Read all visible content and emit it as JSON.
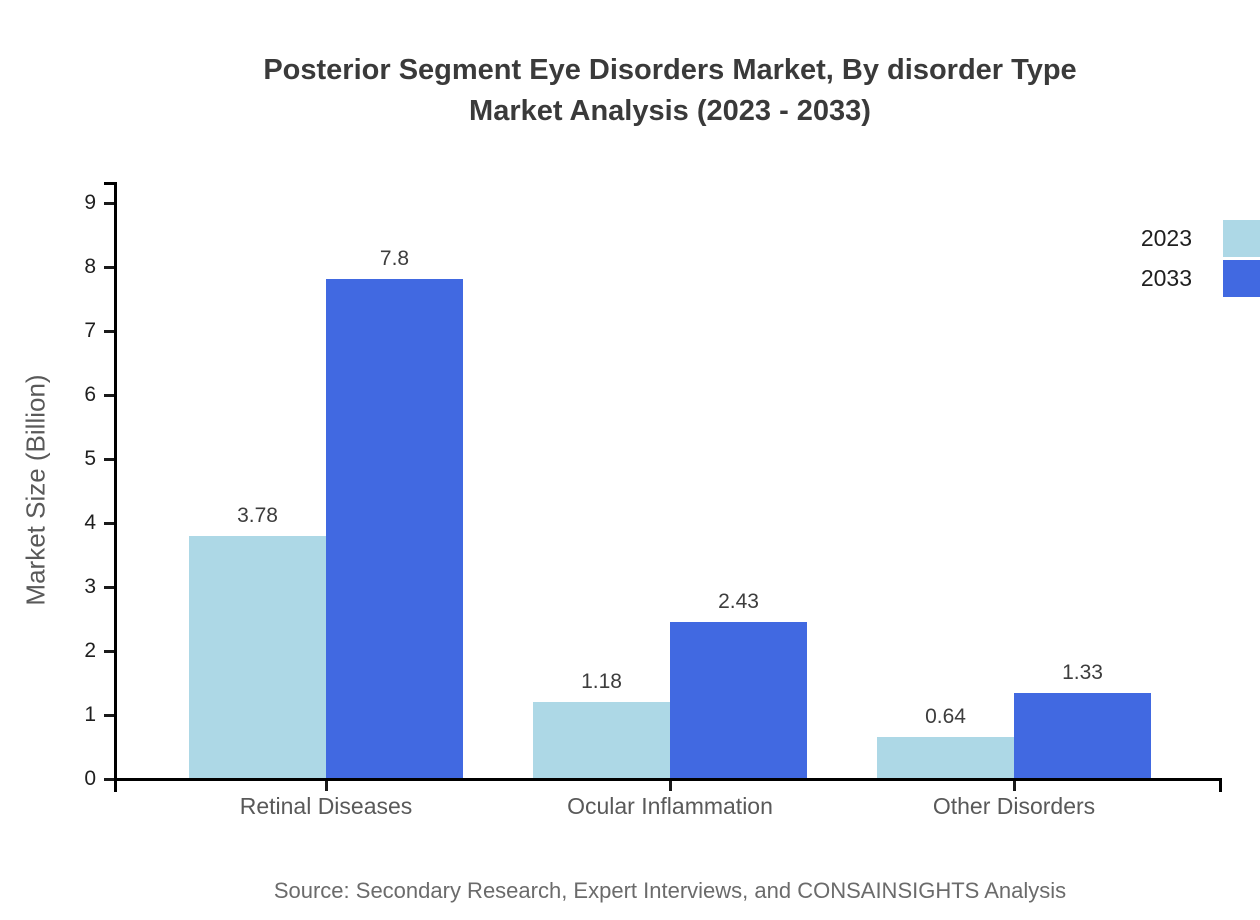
{
  "title": {
    "line1": "Posterior Segment Eye Disorders Market, By disorder Type",
    "line2": "Market Analysis (2023 - 2033)"
  },
  "chart_data": {
    "type": "bar",
    "title": "Posterior Segment Eye Disorders Market, By disorder Type Market Analysis (2023 - 2033)",
    "categories": [
      "Retinal Diseases",
      "Ocular Inflammation",
      "Other Disorders"
    ],
    "series": [
      {
        "name": "2023",
        "color": "#ADD8E6",
        "values": [
          3.78,
          1.18,
          0.64
        ]
      },
      {
        "name": "2033",
        "color": "#4169E1",
        "values": [
          7.8,
          2.43,
          1.33
        ]
      }
    ],
    "xlabel": "",
    "ylabel": "Market Size (Billion)",
    "ylim": [
      0,
      9
    ],
    "yticks": [
      0,
      1,
      2,
      3,
      4,
      5,
      6,
      7,
      8,
      9
    ],
    "grid": false,
    "legend_position": "upper-right-outside",
    "bar_value_labels": [
      "3.78",
      "7.8",
      "1.18",
      "2.43",
      "0.64",
      "1.33"
    ]
  },
  "source_note": "Source: Secondary Research, Expert Interviews, and CONSAINSIGHTS Analysis",
  "colors": {
    "series_2023": "#ADD8E6",
    "series_2033": "#4169E1",
    "axis": "#000000",
    "title_text": "#3a3a3a",
    "category_text": "#595959",
    "value_label_text": "#3d3d3d",
    "source_text": "#6b6b6b"
  }
}
